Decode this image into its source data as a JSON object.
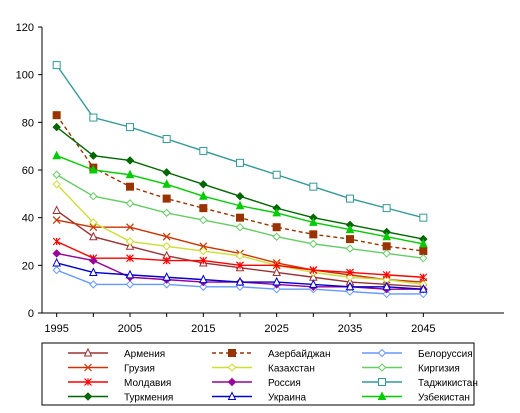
{
  "chart_data": {
    "type": "line",
    "title": "",
    "xlabel": "",
    "ylabel": "",
    "ylim": [
      0,
      120
    ],
    "yticks": [
      0,
      20,
      40,
      60,
      80,
      100,
      120
    ],
    "x": [
      1995,
      2000,
      2005,
      2010,
      2015,
      2020,
      2025,
      2030,
      2035,
      2040,
      2045
    ],
    "xtick_labels": [
      "1995",
      "2005",
      "2015",
      "2025",
      "2035",
      "2045"
    ],
    "xlim": [
      1993,
      2056
    ],
    "grid": false,
    "legend_position": "bottom",
    "series": [
      {
        "name": "Армения",
        "color": "#993333",
        "dash": "",
        "marker": "triangle-open",
        "values": [
          43,
          32,
          28,
          24,
          21,
          19,
          17,
          15,
          13,
          12,
          11
        ]
      },
      {
        "name": "Азербайджан",
        "color": "#993300",
        "dash": "4,3",
        "marker": "square-filled",
        "values": [
          83,
          61,
          53,
          48,
          44,
          40,
          36,
          33,
          31,
          28,
          26
        ]
      },
      {
        "name": "Белоруссия",
        "color": "#6699ff",
        "dash": "",
        "marker": "diamond-open",
        "values": [
          18,
          12,
          12,
          12,
          11,
          11,
          10,
          10,
          9,
          8,
          8
        ]
      },
      {
        "name": "Грузия",
        "color": "#cc3300",
        "dash": "",
        "marker": "x",
        "values": [
          39,
          36,
          36,
          32,
          28,
          25,
          21,
          18,
          16,
          14,
          13
        ]
      },
      {
        "name": "Казахстан",
        "color": "#ccdd33",
        "dash": "",
        "marker": "diamond-open",
        "values": [
          54,
          38,
          30,
          28,
          26,
          24,
          20,
          17,
          15,
          14,
          12
        ]
      },
      {
        "name": "Киргизия",
        "color": "#66cc66",
        "dash": "",
        "marker": "diamond-open",
        "values": [
          58,
          49,
          46,
          42,
          39,
          36,
          32,
          29,
          27,
          25,
          23
        ]
      },
      {
        "name": "Молдавия",
        "color": "#ff0000",
        "dash": "",
        "marker": "asterisk",
        "values": [
          30,
          23,
          23,
          22,
          22,
          20,
          20,
          18,
          17,
          16,
          15
        ]
      },
      {
        "name": "Россия",
        "color": "#990099",
        "dash": "",
        "marker": "diamond-filled",
        "values": [
          25,
          22,
          15,
          14,
          13,
          13,
          12,
          11,
          11,
          10,
          10
        ]
      },
      {
        "name": "Таджикистан",
        "color": "#339999",
        "dash": "",
        "marker": "square-open",
        "values": [
          104,
          82,
          78,
          73,
          68,
          63,
          58,
          53,
          48,
          44,
          40
        ]
      },
      {
        "name": "Туркмения",
        "color": "#006600",
        "dash": "",
        "marker": "diamond-filled",
        "values": [
          78,
          66,
          64,
          59,
          54,
          49,
          44,
          40,
          37,
          34,
          31
        ]
      },
      {
        "name": "Украина",
        "color": "#0000cc",
        "dash": "",
        "marker": "triangle-open",
        "values": [
          21,
          17,
          16,
          15,
          14,
          13,
          13,
          12,
          11,
          11,
          10
        ]
      },
      {
        "name": "Узбекистан",
        "color": "#00cc00",
        "dash": "",
        "marker": "triangle-filled",
        "values": [
          66,
          60,
          58,
          54,
          49,
          45,
          42,
          38,
          35,
          32,
          29
        ]
      }
    ]
  }
}
